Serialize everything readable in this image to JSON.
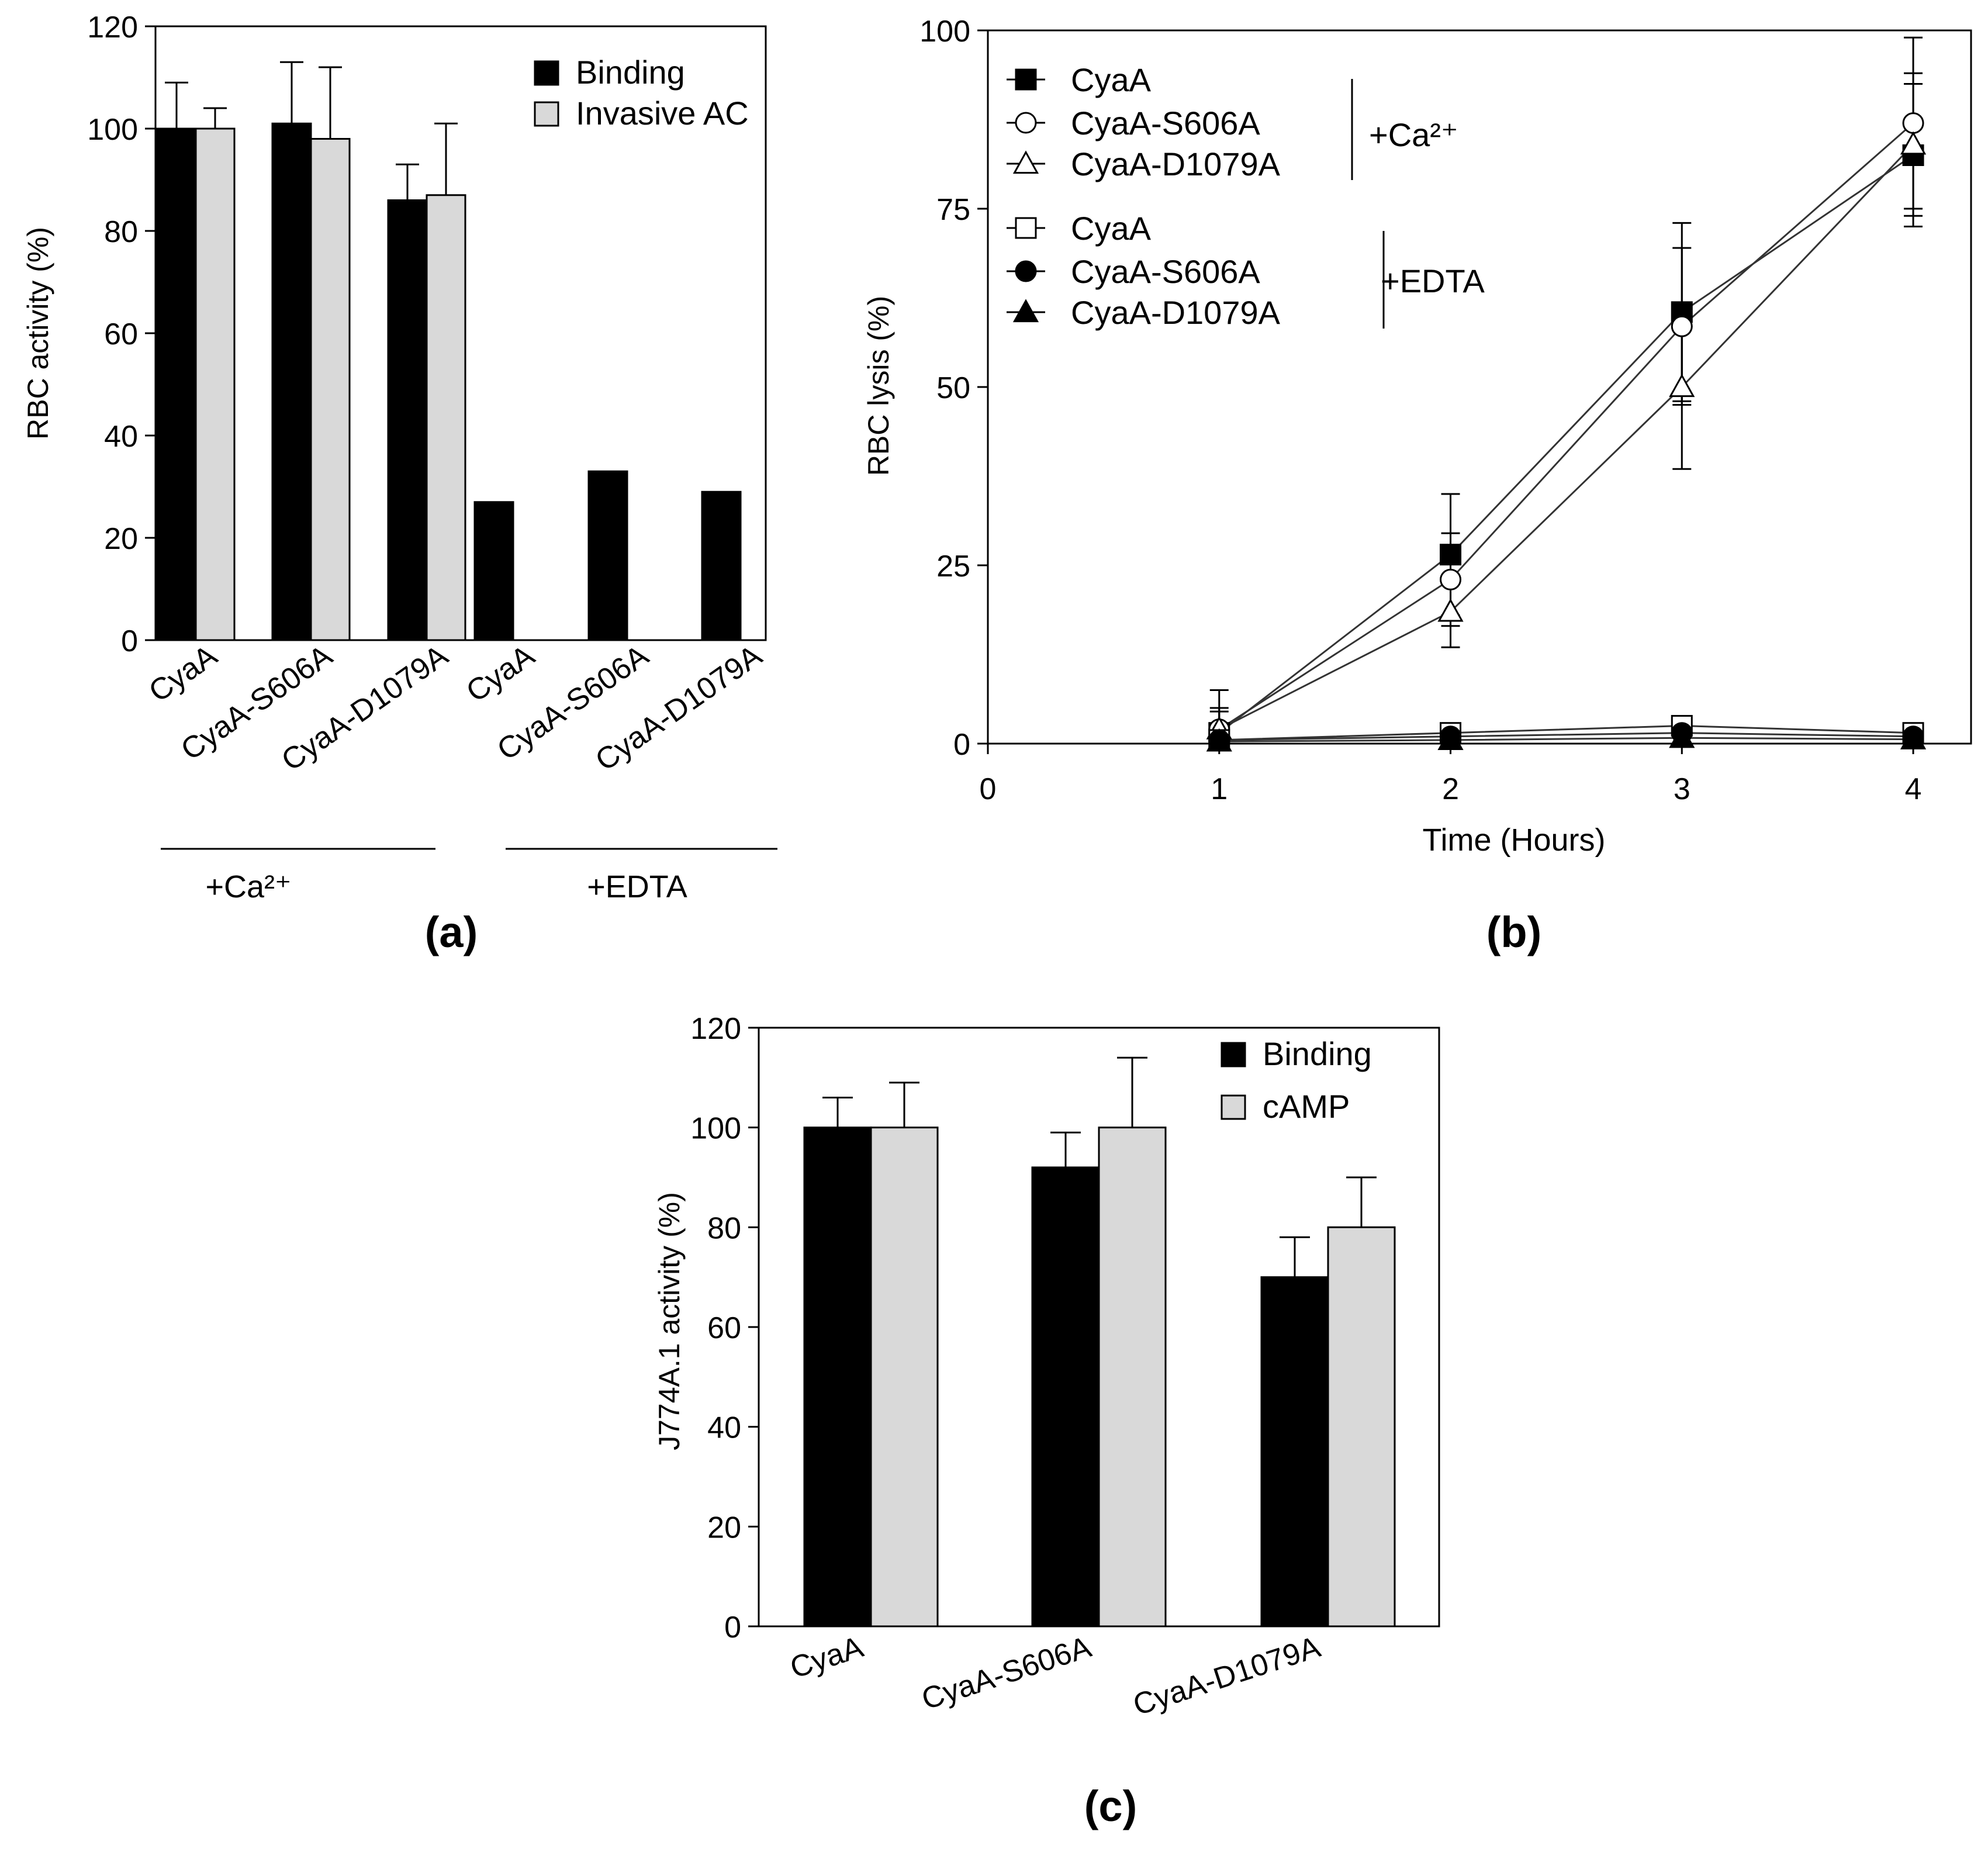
{
  "chart_data": [
    {
      "panel": "(a)",
      "type": "bar",
      "title": "",
      "xlabel": "",
      "ylabel": "RBC activity (%)",
      "ylim": [
        0,
        120
      ],
      "yticks": [
        0,
        20,
        40,
        60,
        80,
        100,
        120
      ],
      "categories": [
        "CyaA",
        "CyaA-S606A",
        "CyaA-D1079A",
        "CyaA",
        "CyaA-S606A",
        "CyaA-D1079A"
      ],
      "groups": [
        {
          "label": "+Ca2+",
          "display": "+Ca²⁺",
          "categories": [
            0,
            1,
            2
          ]
        },
        {
          "label": "+EDTA",
          "display": "+EDTA",
          "categories": [
            3,
            4,
            5
          ]
        }
      ],
      "series": [
        {
          "name": "Binding",
          "color": "#000000",
          "values": [
            100,
            101,
            86,
            27,
            33,
            29
          ],
          "errors": [
            9,
            12,
            7,
            null,
            null,
            null
          ]
        },
        {
          "name": "Invasive  AC",
          "color": "#d9d9d9",
          "values": [
            100,
            98,
            87,
            null,
            null,
            null
          ],
          "errors": [
            4,
            14,
            14,
            null,
            null,
            null
          ]
        }
      ],
      "legend_position": "top-right"
    },
    {
      "panel": "(b)",
      "type": "line",
      "title": "",
      "xlabel": "Time (Hours)",
      "ylabel": "RBC lysis (%)",
      "xlim": [
        0,
        4.25
      ],
      "ylim": [
        0,
        100
      ],
      "xticks": [
        0,
        1,
        2,
        3,
        4
      ],
      "yticks": [
        0,
        25,
        50,
        75,
        100
      ],
      "x": [
        1,
        2,
        3,
        4
      ],
      "series": [
        {
          "name": "CyaA",
          "condition": "+Ca2+",
          "marker": "square-filled",
          "values": [
            1.5,
            26.5,
            60.5,
            82.5
          ],
          "errors": [
            3,
            8.5,
            12.5,
            10
          ]
        },
        {
          "name": "CyaA-S606A",
          "condition": "+Ca2+",
          "marker": "circle-open",
          "values": [
            2,
            23,
            58.5,
            87
          ],
          "errors": [
            5.5,
            6.5,
            11,
            12
          ]
        },
        {
          "name": "CyaA-D1079A",
          "condition": "+Ca2+",
          "marker": "triangle-open",
          "values": [
            2,
            18.5,
            50,
            84
          ],
          "errors": [
            3,
            5,
            11.5,
            10
          ]
        },
        {
          "name": "CyaA",
          "condition": "+EDTA",
          "marker": "square-open",
          "values": [
            0.5,
            1.5,
            2.5,
            1.5
          ],
          "errors": [
            null,
            null,
            null,
            null
          ]
        },
        {
          "name": "CyaA-S606A",
          "condition": "+EDTA",
          "marker": "circle-filled",
          "values": [
            0.5,
            1,
            1.5,
            1
          ],
          "errors": [
            null,
            null,
            null,
            null
          ]
        },
        {
          "name": "CyaA-D1079A",
          "condition": "+EDTA",
          "marker": "triangle-filled",
          "values": [
            0.3,
            0.5,
            0.8,
            0.6
          ],
          "errors": [
            null,
            null,
            null,
            null
          ]
        }
      ],
      "legend_groups": [
        {
          "label": "+Ca2+",
          "display": "+Ca²⁺",
          "series": [
            0,
            1,
            2
          ]
        },
        {
          "label": "+EDTA",
          "display": "+EDTA",
          "series": [
            3,
            4,
            5
          ]
        }
      ],
      "legend_position": "top-left"
    },
    {
      "panel": "(c)",
      "type": "bar",
      "title": "",
      "xlabel": "",
      "ylabel": "J774A.1 activity (%)",
      "ylim": [
        0,
        120
      ],
      "yticks": [
        0,
        20,
        40,
        60,
        80,
        100,
        120
      ],
      "categories": [
        "CyaA",
        "CyaA-S606A",
        "CyaA-D1079A"
      ],
      "series": [
        {
          "name": "Binding",
          "color": "#000000",
          "values": [
            100,
            92,
            70
          ],
          "errors": [
            6,
            7,
            8
          ]
        },
        {
          "name": "cAMP",
          "color": "#d9d9d9",
          "values": [
            100,
            100,
            80
          ],
          "errors": [
            9,
            14,
            10
          ]
        }
      ],
      "legend_position": "top-right"
    }
  ]
}
